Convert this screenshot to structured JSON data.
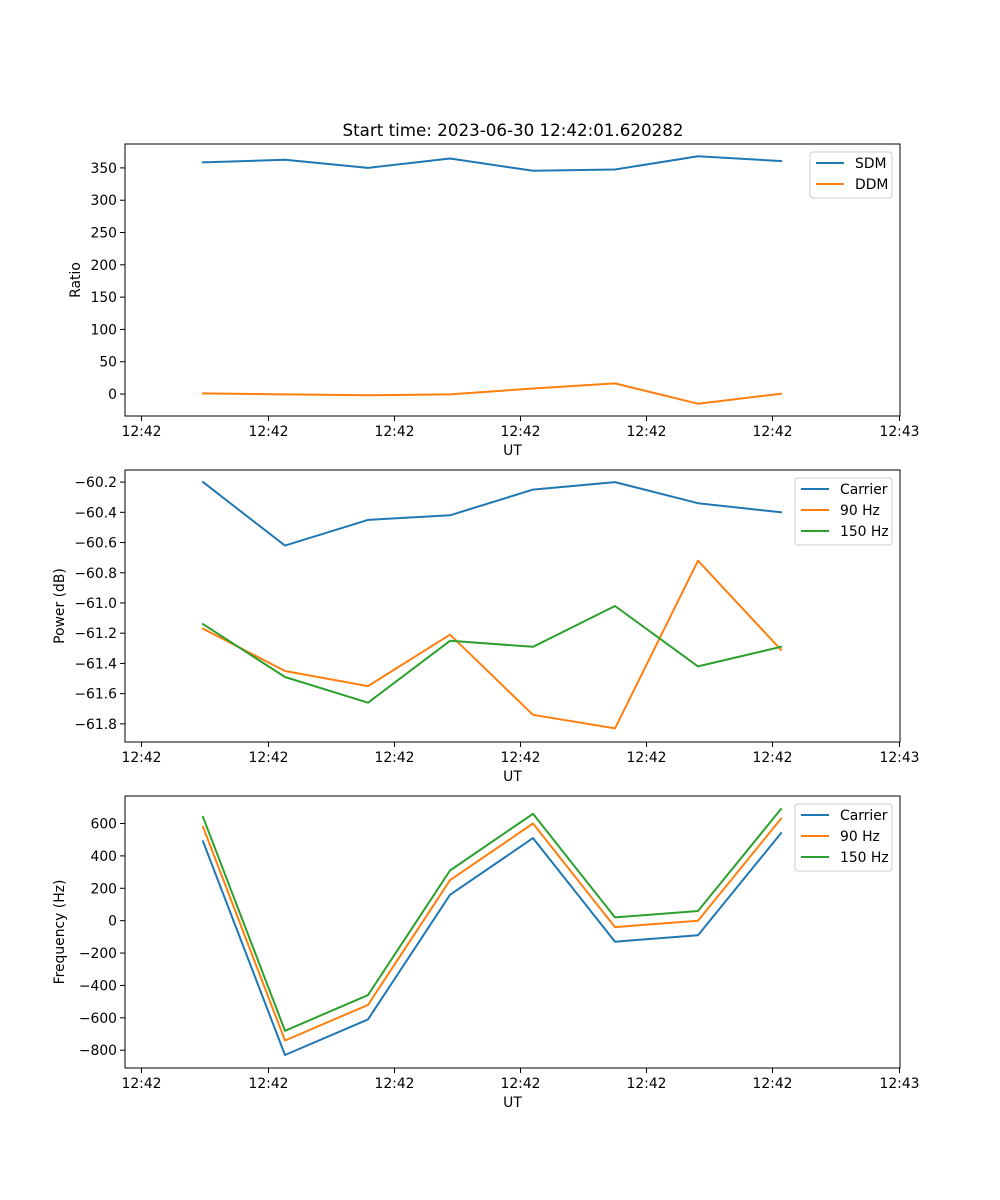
{
  "title": "Start time: 2023-06-30 12:42:01.620282",
  "chart_data": [
    {
      "type": "line",
      "title": "Start time: 2023-06-30 12:42:01.620282",
      "xlabel": "UT",
      "ylabel": "Ratio",
      "x_tick_labels": [
        "12:42",
        "12:42",
        "12:42",
        "12:42",
        "12:42",
        "12:42",
        "12:43"
      ],
      "y_ticks": [
        0,
        50,
        100,
        150,
        200,
        250,
        300,
        350
      ],
      "ylim": [
        -34,
        387
      ],
      "grid": false,
      "legend": "top-right",
      "series": [
        {
          "name": "SDM",
          "color": "#1f77b4",
          "values": [
            358.5,
            362.5,
            350.0,
            364.5,
            345.5,
            347.5,
            368.0,
            360.5
          ]
        },
        {
          "name": "DDM",
          "color": "#ff7f0e",
          "values": [
            1.0,
            -0.5,
            -2.0,
            -0.5,
            8.5,
            16.5,
            -15.0,
            0.5
          ]
        }
      ]
    },
    {
      "type": "line",
      "xlabel": "UT",
      "ylabel": "Power (dB)",
      "x_tick_labels": [
        "12:42",
        "12:42",
        "12:42",
        "12:42",
        "12:42",
        "12:42",
        "12:43"
      ],
      "y_ticks": [
        -61.8,
        -61.6,
        -61.4,
        -61.2,
        -61.0,
        -60.8,
        -60.6,
        -60.4,
        -60.2
      ],
      "y_tick_labels": [
        "−61.8",
        "−61.6",
        "−61.4",
        "−61.2",
        "−61.0",
        "−60.8",
        "−60.6",
        "−60.4",
        "−60.2"
      ],
      "ylim": [
        -61.92,
        -60.12
      ],
      "grid": false,
      "legend": "top-right",
      "series": [
        {
          "name": "Carrier",
          "color": "#1f77b4",
          "values": [
            -60.2,
            -60.62,
            -60.45,
            -60.42,
            -60.25,
            -60.2,
            -60.34,
            -60.4
          ]
        },
        {
          "name": "90 Hz",
          "color": "#ff7f0e",
          "values": [
            -61.17,
            -61.45,
            -61.55,
            -61.21,
            -61.74,
            -61.83,
            -60.72,
            -61.31
          ]
        },
        {
          "name": "150 Hz",
          "color": "#2ca02c",
          "values": [
            -61.14,
            -61.49,
            -61.66,
            -61.25,
            -61.29,
            -61.02,
            -61.42,
            -61.29
          ]
        }
      ]
    },
    {
      "type": "line",
      "xlabel": "UT",
      "ylabel": "Frequency (Hz)",
      "x_tick_labels": [
        "12:42",
        "12:42",
        "12:42",
        "12:42",
        "12:42",
        "12:42",
        "12:43"
      ],
      "y_ticks": [
        -800,
        -600,
        -400,
        -200,
        0,
        200,
        400,
        600
      ],
      "y_tick_labels": [
        "−800",
        "−600",
        "−400",
        "−200",
        "0",
        "200",
        "400",
        "600"
      ],
      "ylim": [
        -910,
        770
      ],
      "grid": false,
      "legend": "top-right",
      "series": [
        {
          "name": "Carrier",
          "color": "#1f77b4",
          "values": [
            490,
            -830,
            -610,
            160,
            510,
            -130,
            -90,
            540
          ]
        },
        {
          "name": "90 Hz",
          "color": "#ff7f0e",
          "values": [
            580,
            -740,
            -520,
            250,
            600,
            -40,
            0,
            630
          ]
        },
        {
          "name": "150 Hz",
          "color": "#2ca02c",
          "values": [
            640,
            -680,
            -460,
            310,
            660,
            20,
            60,
            690
          ]
        }
      ]
    }
  ]
}
